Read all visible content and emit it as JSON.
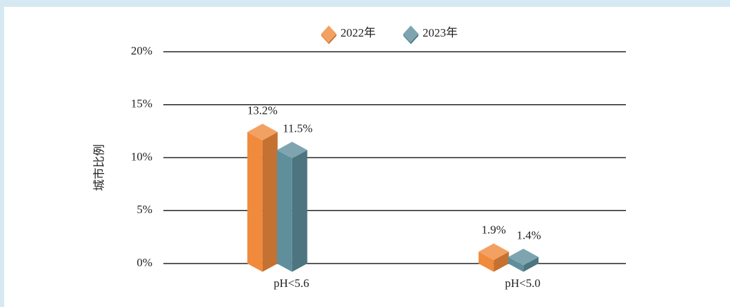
{
  "chart_data": {
    "type": "bar",
    "axis_title": "城市比例",
    "categories": [
      "pH<5.6",
      "pH<5.0"
    ],
    "series": [
      {
        "name": "2022年",
        "color": "#f08a3c",
        "values": [
          13.2,
          1.9
        ],
        "value_labels": [
          "13.2%",
          "1.9%"
        ]
      },
      {
        "name": "2023年",
        "color": "#5e8f9b",
        "values": [
          11.5,
          1.4
        ],
        "value_labels": [
          "11.5%",
          "1.4%"
        ]
      }
    ],
    "ylim": [
      0,
      20
    ],
    "yticks": [
      {
        "value": 0,
        "label": "0%"
      },
      {
        "value": 5,
        "label": "5%"
      },
      {
        "value": 10,
        "label": "10%"
      },
      {
        "value": 15,
        "label": "15%"
      },
      {
        "value": 20,
        "label": "20%"
      }
    ],
    "grid": true,
    "legend": "top"
  }
}
